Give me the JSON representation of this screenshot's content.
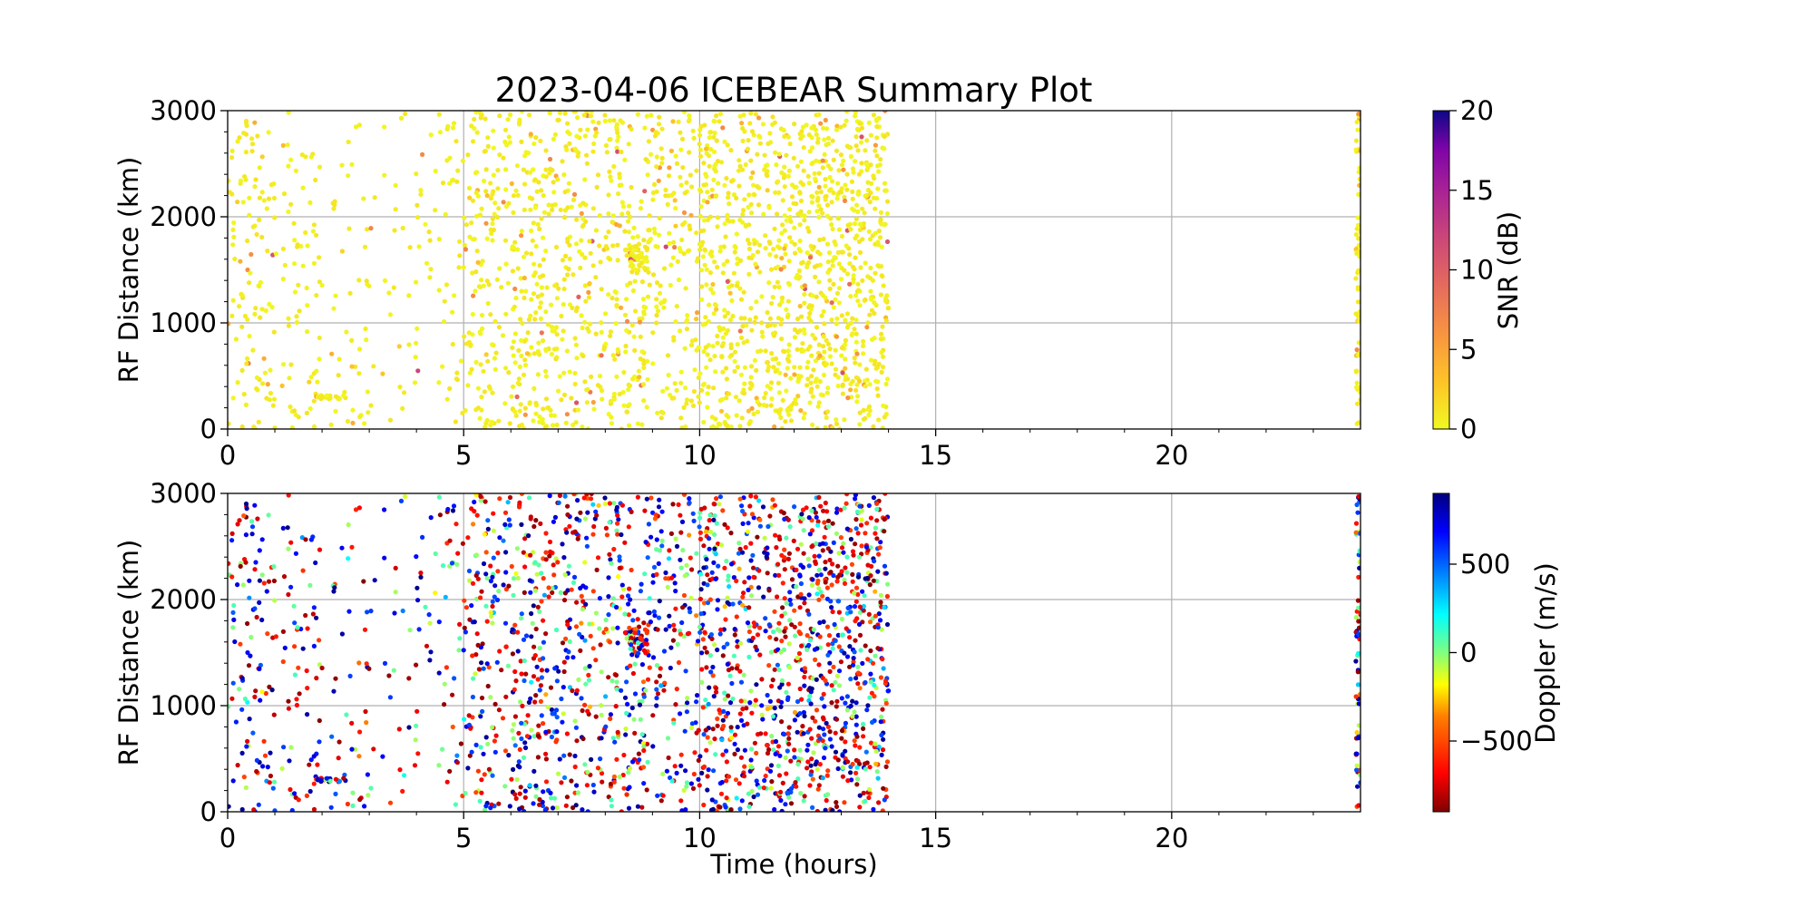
{
  "figure": {
    "title": "2023-04-06 ICEBEAR Summary Plot"
  },
  "colors": {
    "grid": "#b0b0b0",
    "axis": "#000000",
    "background": "#ffffff",
    "snr_colormap": "plasma_r",
    "doppler_colormap": "jet_r"
  },
  "chart_data": [
    {
      "type": "scatter",
      "title": "2023-04-06 ICEBEAR Summary Plot",
      "xlabel": "",
      "ylabel": "RF Distance (km)",
      "xlim": [
        0,
        24
      ],
      "ylim": [
        0,
        3000
      ],
      "x_ticks": [
        0,
        5,
        10,
        15,
        20
      ],
      "x_tick_labels": [
        "0",
        "5",
        "10",
        "15",
        "20"
      ],
      "y_ticks": [
        0,
        1000,
        2000,
        3000
      ],
      "y_tick_labels": [
        "0",
        "1000",
        "2000",
        "3000"
      ],
      "grid": true,
      "color_variable": "SNR (dB)",
      "colorbar": {
        "label": "SNR (dB)",
        "range": [
          0,
          20
        ],
        "ticks": [
          0,
          5,
          10,
          15,
          20
        ],
        "tick_labels": [
          "0",
          "5",
          "10",
          "15",
          "20"
        ],
        "colormap": "plasma_r"
      },
      "data_coverage_hours": [
        [
          0,
          14
        ],
        [
          23.9,
          24
        ]
      ],
      "point_density_by_hour": [
        {
          "hour_range": [
            0,
            1
          ],
          "points": 110
        },
        {
          "hour_range": [
            1,
            2
          ],
          "points": 70
        },
        {
          "hour_range": [
            2,
            3
          ],
          "points": 45
        },
        {
          "hour_range": [
            3,
            4
          ],
          "points": 30
        },
        {
          "hour_range": [
            4,
            5
          ],
          "points": 55
        },
        {
          "hour_range": [
            5,
            6
          ],
          "points": 150
        },
        {
          "hour_range": [
            6,
            7
          ],
          "points": 200
        },
        {
          "hour_range": [
            7,
            8
          ],
          "points": 160
        },
        {
          "hour_range": [
            8,
            9
          ],
          "points": 175
        },
        {
          "hour_range": [
            9,
            10
          ],
          "points": 150
        },
        {
          "hour_range": [
            10,
            11
          ],
          "points": 240
        },
        {
          "hour_range": [
            11,
            12
          ],
          "points": 230
        },
        {
          "hour_range": [
            12,
            13
          ],
          "points": 280
        },
        {
          "hour_range": [
            13,
            14
          ],
          "points": 290
        },
        {
          "hour_range": [
            23.9,
            24
          ],
          "points": 60
        }
      ],
      "features": [
        {
          "x_range": [
            1.8,
            2.5
          ],
          "y": 300,
          "description": "horizontal streak"
        },
        {
          "x_range": [
            8.4,
            8.9
          ],
          "y_range": [
            1450,
            1750
          ],
          "description": "dense cluster"
        }
      ]
    },
    {
      "type": "scatter",
      "title": "",
      "xlabel": "Time (hours)",
      "ylabel": "RF Distance (km)",
      "xlim": [
        0,
        24
      ],
      "ylim": [
        0,
        3000
      ],
      "x_ticks": [
        0,
        5,
        10,
        15,
        20
      ],
      "x_tick_labels": [
        "0",
        "5",
        "10",
        "15",
        "20"
      ],
      "y_ticks": [
        0,
        1000,
        2000,
        3000
      ],
      "y_tick_labels": [
        "0",
        "1000",
        "2000",
        "3000"
      ],
      "grid": true,
      "color_variable": "Doppler (m/s)",
      "colorbar": {
        "label": "Doppler (m/s)",
        "range": [
          -900,
          900
        ],
        "ticks": [
          -500,
          0,
          500
        ],
        "tick_labels": [
          "−500",
          "0",
          "500"
        ],
        "colormap": "jet_r"
      },
      "data_coverage_hours": [
        [
          0,
          14
        ],
        [
          23.9,
          24
        ]
      ],
      "point_density_by_hour": [
        {
          "hour_range": [
            0,
            1
          ],
          "points": 110
        },
        {
          "hour_range": [
            1,
            2
          ],
          "points": 70
        },
        {
          "hour_range": [
            2,
            3
          ],
          "points": 45
        },
        {
          "hour_range": [
            3,
            4
          ],
          "points": 30
        },
        {
          "hour_range": [
            4,
            5
          ],
          "points": 55
        },
        {
          "hour_range": [
            5,
            6
          ],
          "points": 150
        },
        {
          "hour_range": [
            6,
            7
          ],
          "points": 200
        },
        {
          "hour_range": [
            7,
            8
          ],
          "points": 160
        },
        {
          "hour_range": [
            8,
            9
          ],
          "points": 175
        },
        {
          "hour_range": [
            9,
            10
          ],
          "points": 150
        },
        {
          "hour_range": [
            10,
            11
          ],
          "points": 240
        },
        {
          "hour_range": [
            11,
            12
          ],
          "points": 230
        },
        {
          "hour_range": [
            12,
            13
          ],
          "points": 280
        },
        {
          "hour_range": [
            13,
            14
          ],
          "points": 290
        },
        {
          "hour_range": [
            23.9,
            24
          ],
          "points": 60
        }
      ],
      "features": [
        {
          "x_range": [
            1.8,
            2.5
          ],
          "y": 300,
          "description": "horizontal streak"
        },
        {
          "x_range": [
            8.4,
            8.9
          ],
          "y_range": [
            1450,
            1750
          ],
          "description": "dense cluster"
        }
      ]
    }
  ]
}
